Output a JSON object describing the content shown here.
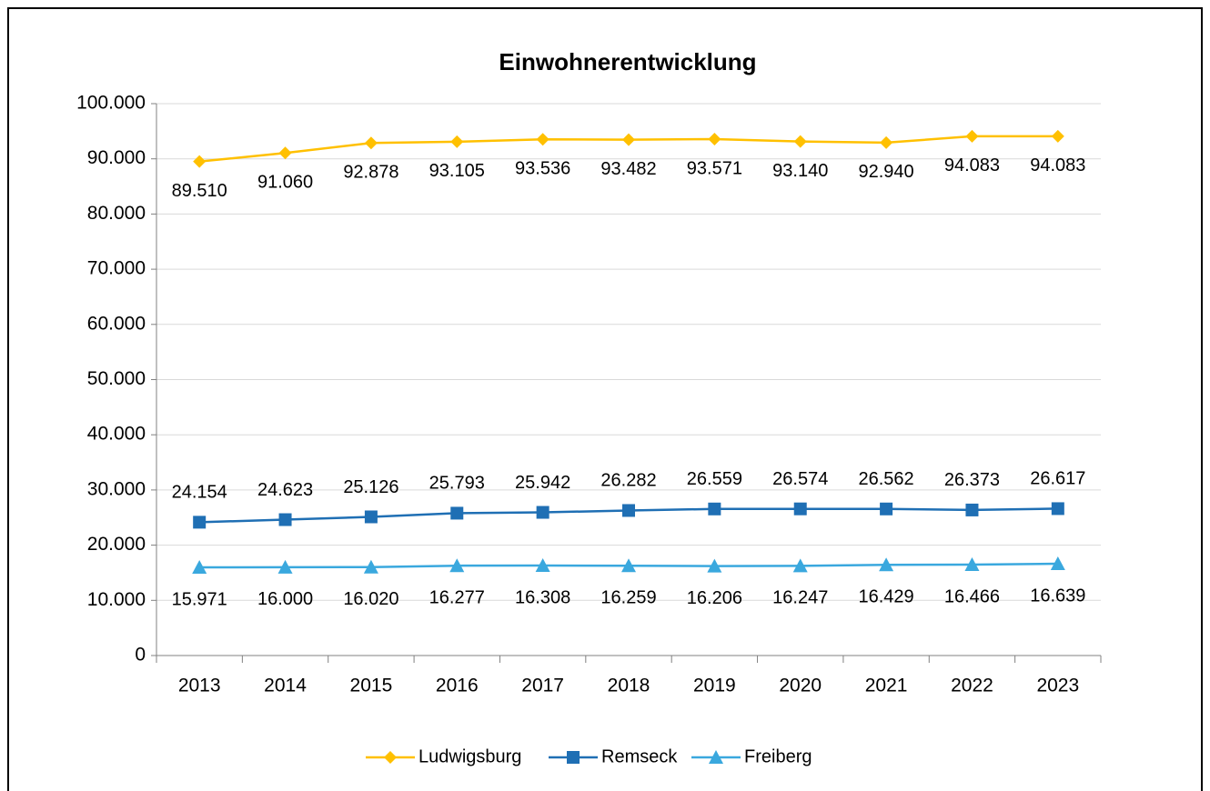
{
  "chart_data": {
    "type": "line",
    "title": "Einwohnerentwicklung",
    "categories": [
      "2013",
      "2014",
      "2015",
      "2016",
      "2017",
      "2018",
      "2019",
      "2020",
      "2021",
      "2022",
      "2023"
    ],
    "series": [
      {
        "name": "Ludwigsburg",
        "color": "#FFC000",
        "marker": "diamond",
        "values": [
          89510,
          91060,
          92878,
          93105,
          93536,
          93482,
          93571,
          93140,
          92940,
          94083,
          94083
        ],
        "value_labels": [
          "89.510",
          "91.060",
          "92.878",
          "93.105",
          "93.536",
          "93.482",
          "93.571",
          "93.140",
          "92.940",
          "94.083",
          "94.083"
        ]
      },
      {
        "name": "Remseck",
        "color": "#1F6FB4",
        "marker": "square",
        "values": [
          24154,
          24623,
          25126,
          25793,
          25942,
          26282,
          26559,
          26574,
          26562,
          26373,
          26617
        ],
        "value_labels": [
          "24.154",
          "24.623",
          "25.126",
          "25.793",
          "25.942",
          "26.282",
          "26.559",
          "26.574",
          "26.562",
          "26.373",
          "26.617"
        ]
      },
      {
        "name": "Freiberg",
        "color": "#3AA8DE",
        "marker": "triangle",
        "values": [
          15971,
          16000,
          16020,
          16277,
          16308,
          16259,
          16206,
          16247,
          16429,
          16466,
          16639
        ],
        "value_labels": [
          "15.971",
          "16.000",
          "16.020",
          "16.277",
          "16.308",
          "16.259",
          "16.206",
          "16.247",
          "16.429",
          "16.466",
          "16.639"
        ]
      }
    ],
    "ylim": [
      0,
      100000
    ],
    "yticks": [
      0,
      {
        "value": 10000,
        "label": "10.000"
      },
      {
        "value": 20000,
        "label": "20.000"
      },
      {
        "value": 30000,
        "label": "30.000"
      },
      {
        "value": 40000,
        "label": "40.000"
      },
      {
        "value": 50000,
        "label": "50.000"
      },
      {
        "value": 60000,
        "label": "60.000"
      },
      {
        "value": 70000,
        "label": "70.000"
      },
      {
        "value": 80000,
        "label": "80.000"
      },
      {
        "value": 90000,
        "label": "90.000"
      },
      {
        "value": 100000,
        "label": "100.000"
      }
    ],
    "grid": true,
    "legend": "bottom"
  }
}
